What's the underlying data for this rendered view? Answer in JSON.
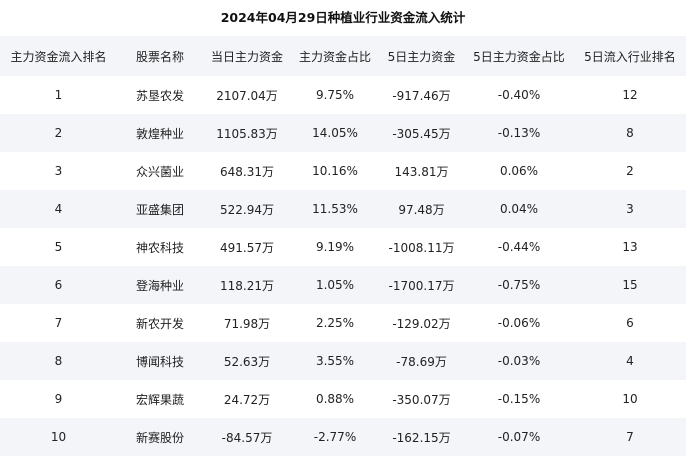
{
  "title": "2024年04月29日种植业行业资金流入统计",
  "columns": [
    "主力资金流入排名",
    "股票名称",
    "当日主力资金",
    "主力资金占比",
    "5日主力资金",
    "5日主力资金占比",
    "5日流入行业排名"
  ],
  "rows": [
    [
      "1",
      "苏垦农发",
      "2107.04万",
      "9.75%",
      "-917.46万",
      "-0.40%",
      "12"
    ],
    [
      "2",
      "敦煌种业",
      "1105.83万",
      "14.05%",
      "-305.45万",
      "-0.13%",
      "8"
    ],
    [
      "3",
      "众兴菌业",
      "648.31万",
      "10.16%",
      "143.81万",
      "0.06%",
      "2"
    ],
    [
      "4",
      "亚盛集团",
      "522.94万",
      "11.53%",
      "97.48万",
      "0.04%",
      "3"
    ],
    [
      "5",
      "神农科技",
      "491.57万",
      "9.19%",
      "-1008.11万",
      "-0.44%",
      "13"
    ],
    [
      "6",
      "登海种业",
      "118.21万",
      "1.05%",
      "-1700.17万",
      "-0.75%",
      "15"
    ],
    [
      "7",
      "新农开发",
      "71.98万",
      "2.25%",
      "-129.02万",
      "-0.06%",
      "6"
    ],
    [
      "8",
      "博闻科技",
      "52.63万",
      "3.55%",
      "-78.69万",
      "-0.03%",
      "4"
    ],
    [
      "9",
      "宏辉果蔬",
      "24.72万",
      "0.88%",
      "-350.07万",
      "-0.15%",
      "10"
    ],
    [
      "10",
      "新赛股份",
      "-84.57万",
      "-2.77%",
      "-162.15万",
      "-0.07%",
      "7"
    ]
  ]
}
